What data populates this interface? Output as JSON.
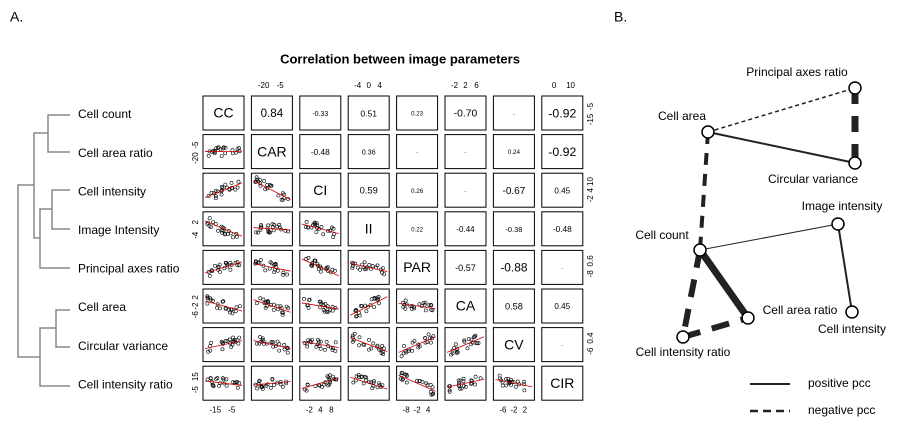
{
  "panel_a": {
    "label": "A.",
    "title": "Correlation between image parameters",
    "row_labels": [
      "Cell count",
      "Cell area ratio",
      "Cell intensity",
      "Image Intensity",
      "Principal axes ratio",
      "Cell area",
      "Circular variance",
      "Cell intensity ratio"
    ],
    "diagonal": [
      "CC",
      "CAR",
      "CI",
      "II",
      "PAR",
      "CA",
      "CV",
      "CIR"
    ],
    "correlations": [
      [
        "0.84",
        "-0.33",
        "0.51",
        "0.23",
        "-0.70",
        "--",
        "-0.92"
      ],
      [
        "-0.48",
        "0.36",
        "--",
        "--",
        "0.24",
        "-0.92"
      ],
      [
        "0.59",
        "0.26",
        "--",
        "-0.67",
        "0.45"
      ],
      [
        "0.22",
        "-0.44",
        "-0.38",
        "-0.48"
      ],
      [
        "-0.57",
        "-0.88",
        "--"
      ],
      [
        "0.58",
        "0.45"
      ],
      [
        "--"
      ]
    ],
    "top_ticks": {
      "1": [
        "-20",
        "-5"
      ],
      "3": [
        "-4",
        "0",
        "4"
      ],
      "5": [
        "-2",
        "2",
        "6"
      ],
      "7": [
        "0",
        "10"
      ]
    },
    "bottom_ticks": {
      "0": [
        "-15",
        "-5"
      ],
      "2": [
        "-2",
        "4",
        "8"
      ],
      "4": [
        "-8",
        "-2",
        "4"
      ],
      "6": [
        "-6",
        "-2",
        "2"
      ]
    },
    "left_ticks": {
      "1": [
        "-20",
        "-5"
      ],
      "3": [
        "-4",
        "2"
      ],
      "5": [
        "-6",
        "-2",
        "2"
      ],
      "7": [
        "-5",
        "15"
      ]
    },
    "right_ticks": {
      "0": [
        "-15",
        "-5"
      ],
      "2": [
        "-2",
        "4",
        "10"
      ],
      "4": [
        "-8",
        "0.6"
      ],
      "6": [
        "-6",
        "0.4"
      ]
    }
  },
  "panel_b": {
    "label": "B.",
    "nodes": [
      "Principal axes ratio",
      "Cell area",
      "Circular variance",
      "Image intensity",
      "Cell count",
      "Cell area ratio",
      "Cell intensity",
      "Cell intensity ratio"
    ],
    "legend": [
      "positive pcc",
      "negative pcc"
    ]
  }
}
